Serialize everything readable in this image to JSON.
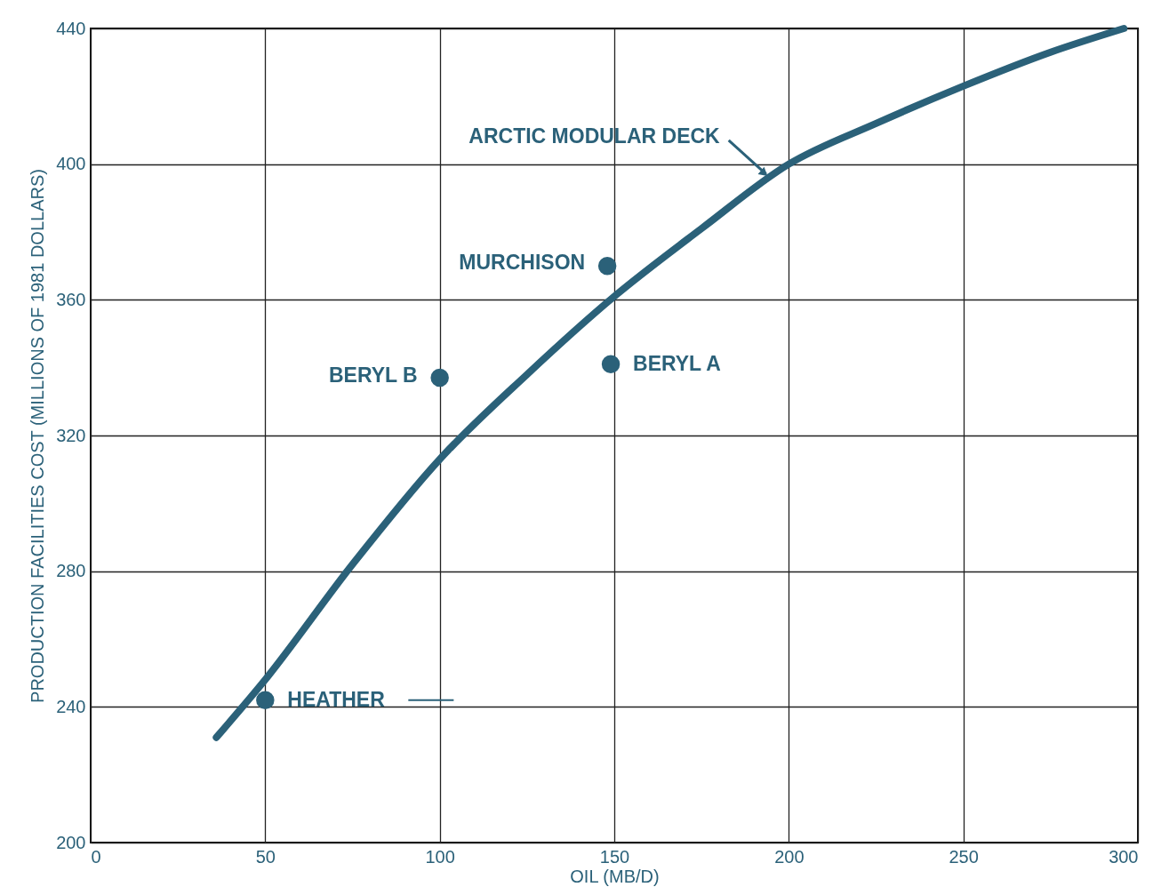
{
  "chart_data": {
    "type": "scatter",
    "xlabel": "OIL (MB/D)",
    "ylabel": "PRODUCTION FACILITIES COST (MILLIONS OF 1981 DOLLARS)",
    "xlim": [
      0,
      300
    ],
    "xticks": [
      0,
      50,
      100,
      150,
      200,
      250,
      300
    ],
    "ylim": [
      200,
      440
    ],
    "yticks": [
      200,
      240,
      280,
      320,
      360,
      400,
      440
    ],
    "grid": true,
    "series": [
      {
        "type": "line",
        "color": "#2b6179",
        "x": [
          36,
          50,
          75,
          100,
          125,
          150,
          175,
          200,
          225,
          250,
          275,
          296
        ],
        "values": [
          231,
          248,
          282,
          313,
          338,
          361,
          381,
          400,
          412,
          423,
          433,
          440
        ]
      },
      {
        "marker": "circle",
        "color": "#2b6179",
        "x": [
          50,
          100,
          148,
          149
        ],
        "values": [
          242,
          337,
          370,
          341
        ]
      }
    ],
    "annotations": [
      {
        "text": "HEATHER",
        "x": 50,
        "y": 242
      },
      {
        "text": "BERYL B",
        "x": 100,
        "y": 337
      },
      {
        "text": "MURCHISON",
        "x": 148,
        "y": 370
      },
      {
        "text": "BERYL A",
        "x": 149,
        "y": 341
      },
      {
        "text": "ARCTIC MODULAR DECK",
        "x": 195,
        "y": 396
      }
    ]
  }
}
